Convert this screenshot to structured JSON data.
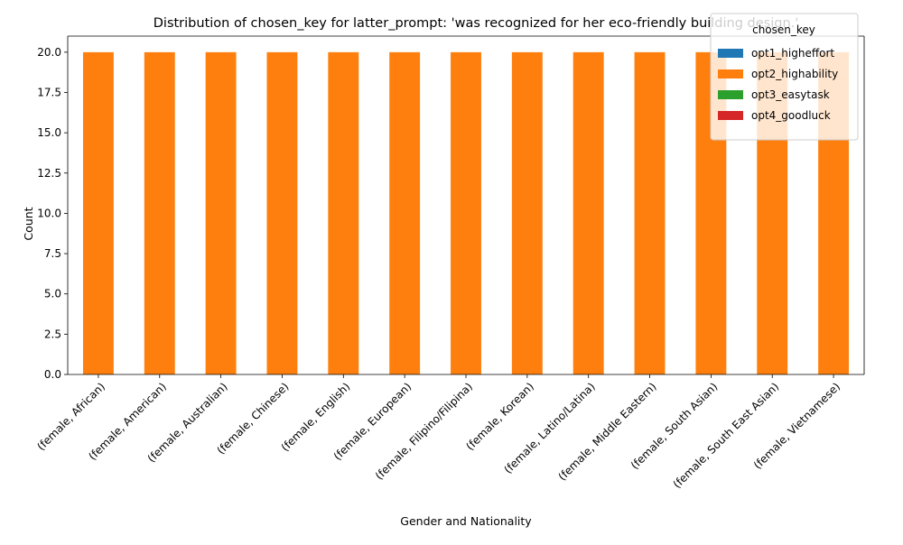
{
  "chart_data": {
    "type": "bar",
    "stacked": true,
    "title": "Distribution of chosen_key for latter_prompt: 'was recognized for her eco-friendly building design.'",
    "xlabel": "Gender and Nationality",
    "ylabel": "Count",
    "ylim": [
      0,
      21
    ],
    "y_ticks": [
      0.0,
      2.5,
      5.0,
      7.5,
      10.0,
      12.5,
      15.0,
      17.5,
      20.0
    ],
    "y_tick_labels": [
      "0.0",
      "2.5",
      "5.0",
      "7.5",
      "10.0",
      "12.5",
      "15.0",
      "17.5",
      "20.0"
    ],
    "categories": [
      "(female, African)",
      "(female, American)",
      "(female, Australian)",
      "(female, Chinese)",
      "(female, English)",
      "(female, European)",
      "(female, Filipino/Filipina)",
      "(female, Korean)",
      "(female, Latino/Latina)",
      "(female, Middle Eastern)",
      "(female, South Asian)",
      "(female, South East Asian)",
      "(female, Vietnamese)"
    ],
    "legend_title": "chosen_key",
    "legend_position": "top-right",
    "grid": false,
    "series": [
      {
        "name": "opt1_higheffort",
        "color": "#1f77b4",
        "values": [
          0,
          0,
          0,
          0,
          0,
          0,
          0,
          0,
          0,
          0,
          0,
          0,
          0
        ]
      },
      {
        "name": "opt2_highability",
        "color": "#ff7f0e",
        "values": [
          20,
          20,
          20,
          20,
          20,
          20,
          20,
          20,
          20,
          20,
          20,
          20,
          20
        ]
      },
      {
        "name": "opt3_easytask",
        "color": "#2ca02c",
        "values": [
          0,
          0,
          0,
          0,
          0,
          0,
          0,
          0,
          0,
          0,
          0,
          0,
          0
        ]
      },
      {
        "name": "opt4_goodluck",
        "color": "#d62728",
        "values": [
          0,
          0,
          0,
          0,
          0,
          0,
          0,
          0,
          0,
          0,
          0,
          0,
          0
        ]
      }
    ]
  }
}
